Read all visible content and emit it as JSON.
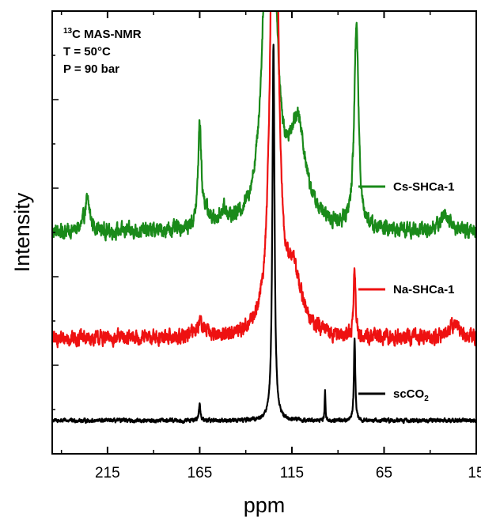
{
  "chart_data": {
    "type": "line",
    "title": "",
    "xlabel": "ppm",
    "ylabel": "Intensity",
    "x_reversed": true,
    "xlim": [
      15,
      245
    ],
    "ylim": [
      0,
      100
    ],
    "x_ticks": [
      215,
      165,
      115,
      65,
      15
    ],
    "x_tick_labels": [
      "215",
      "165",
      "115",
      "65",
      "15"
    ],
    "y_ticks_shown": false,
    "annotations": [
      {
        "sup": "13",
        "text": "C MAS-NMR"
      },
      {
        "text": "T = 50°C"
      },
      {
        "text": "P = 90 bar"
      }
    ],
    "series": [
      {
        "name": "Cs-SHCa-1",
        "name_label": "Cs-SHCa-1",
        "color": "#1a8a1a",
        "baseline": 50,
        "noise": 1.4,
        "peaks": [
          {
            "x": 226,
            "height": 7,
            "width": 1.8
          },
          {
            "x": 165,
            "height": 23,
            "width": 1.0
          },
          {
            "x": 162,
            "height": 3,
            "width": 2.5
          },
          {
            "x": 152,
            "height": 3,
            "width": 3.0
          },
          {
            "x": 127,
            "height": 110,
            "width": 3.2
          },
          {
            "x": 112,
            "height": 22,
            "width": 5.5
          },
          {
            "x": 80,
            "height": 46,
            "width": 1.4
          },
          {
            "x": 32,
            "height": 4,
            "width": 3.0
          }
        ]
      },
      {
        "name": "Na-SHCa-1",
        "name_label": "Na-SHCa-1",
        "color": "#ee1111",
        "baseline": 26,
        "noise": 1.4,
        "peaks": [
          {
            "x": 165,
            "height": 3,
            "width": 3.0
          },
          {
            "x": 124.5,
            "height": 150,
            "width": 2.0
          },
          {
            "x": 114,
            "height": 13,
            "width": 5.0
          },
          {
            "x": 81,
            "height": 16,
            "width": 0.6
          },
          {
            "x": 27,
            "height": 3,
            "width": 4.0
          }
        ]
      },
      {
        "name": "scCO2",
        "name_label_main": "scCO",
        "name_label_sub": "2",
        "color": "#000000",
        "baseline": 7.5,
        "noise": 0.35,
        "peaks": [
          {
            "x": 165,
            "height": 3.5,
            "width": 0.55
          },
          {
            "x": 125,
            "height": 85,
            "width": 0.7
          },
          {
            "x": 97,
            "height": 7,
            "width": 0.25
          },
          {
            "x": 81,
            "height": 18.5,
            "width": 0.45
          }
        ]
      }
    ]
  }
}
